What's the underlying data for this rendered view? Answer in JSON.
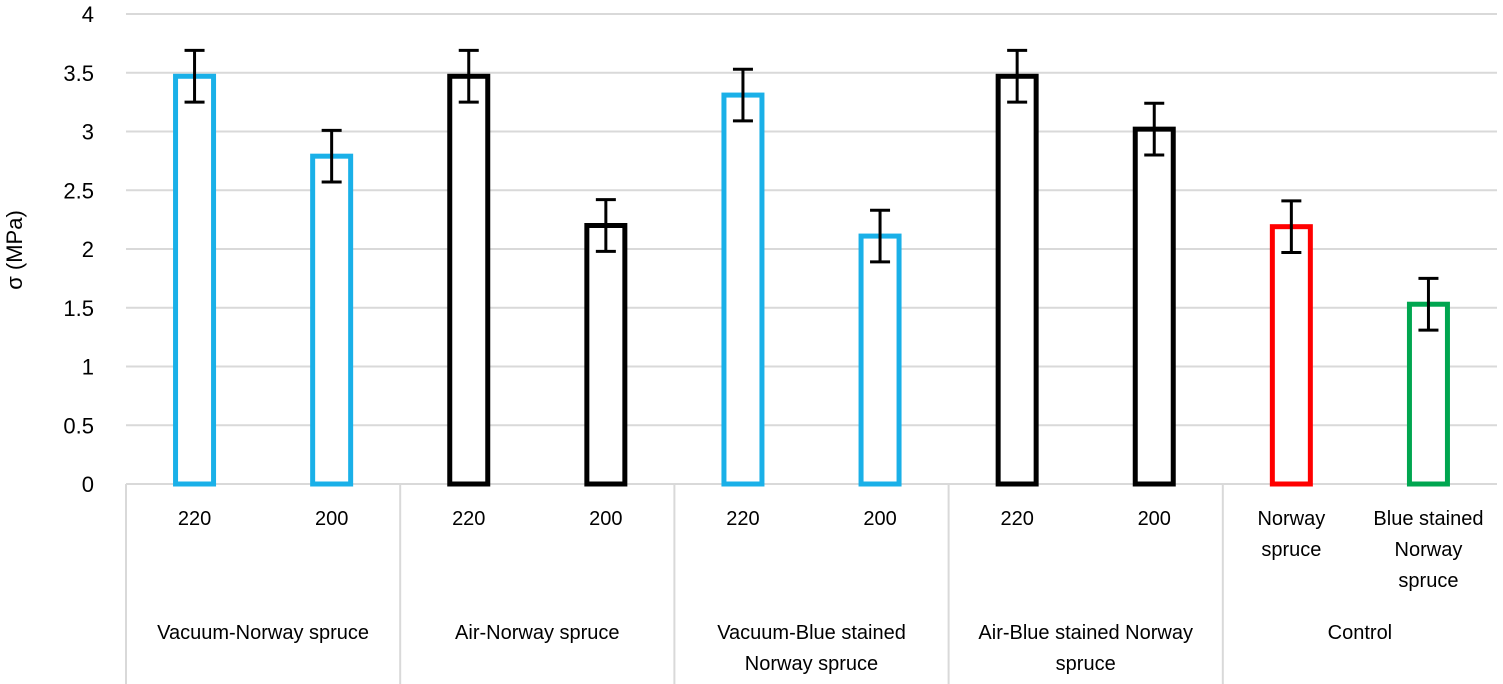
{
  "chart_data": {
    "type": "bar",
    "title": "",
    "ylabel": "σ (MPa)",
    "ylim": [
      0,
      4
    ],
    "yticks": [
      "0",
      "0.5",
      "1",
      "1.5",
      "2",
      "2.5",
      "3",
      "3.5",
      "4"
    ],
    "grid": true,
    "legend": "none",
    "bars": [
      {
        "group": 0,
        "label": [
          "220"
        ],
        "value": 3.47,
        "error": 0.22,
        "color": "#1AB0E8"
      },
      {
        "group": 0,
        "label": [
          "200"
        ],
        "value": 2.79,
        "error": 0.22,
        "color": "#1AB0E8"
      },
      {
        "group": 1,
        "label": [
          "220"
        ],
        "value": 3.47,
        "error": 0.22,
        "color": "#000000"
      },
      {
        "group": 1,
        "label": [
          "200"
        ],
        "value": 2.2,
        "error": 0.22,
        "color": "#000000"
      },
      {
        "group": 2,
        "label": [
          "220"
        ],
        "value": 3.31,
        "error": 0.22,
        "color": "#1AB0E8"
      },
      {
        "group": 2,
        "label": [
          "200"
        ],
        "value": 2.11,
        "error": 0.22,
        "color": "#1AB0E8"
      },
      {
        "group": 3,
        "label": [
          "220"
        ],
        "value": 3.47,
        "error": 0.22,
        "color": "#000000"
      },
      {
        "group": 3,
        "label": [
          "200"
        ],
        "value": 3.02,
        "error": 0.22,
        "color": "#000000"
      },
      {
        "group": 4,
        "label": [
          "Norway",
          "spruce"
        ],
        "value": 2.19,
        "error": 0.22,
        "color": "#FF0000"
      },
      {
        "group": 4,
        "label": [
          "Blue stained",
          "Norway",
          "spruce"
        ],
        "value": 1.53,
        "error": 0.22,
        "color": "#00A650"
      }
    ],
    "groups": [
      {
        "label": [
          "Vacuum-Norway spruce"
        ]
      },
      {
        "label": [
          "Air-Norway spruce"
        ]
      },
      {
        "label": [
          "Vacuum-Blue stained",
          "Norway spruce"
        ]
      },
      {
        "label": [
          "Air-Blue stained Norway",
          "spruce"
        ]
      },
      {
        "label": [
          "Control"
        ]
      }
    ]
  }
}
